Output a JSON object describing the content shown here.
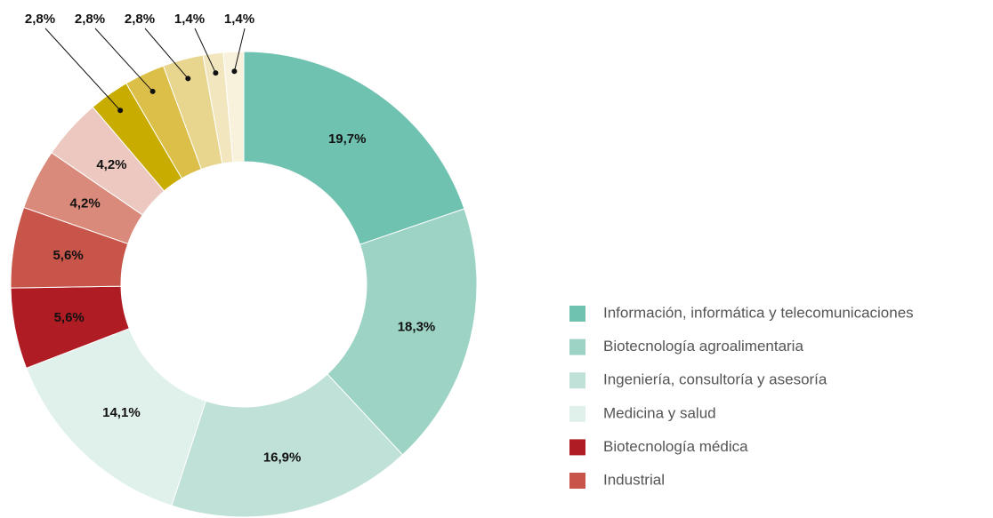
{
  "chart_data": {
    "type": "donut",
    "categories": [
      "Información, informática y telecomunicaciones",
      "Biotecnología agroalimentaria",
      "Ingeniería, consultoría y asesoría",
      "Medicina y salud",
      "Biotecnología médica",
      "Industrial",
      null,
      null,
      null,
      null,
      null,
      null,
      null
    ],
    "values": [
      19.7,
      18.3,
      16.9,
      14.1,
      5.6,
      5.6,
      4.2,
      4.2,
      2.8,
      2.8,
      2.8,
      1.4,
      1.4
    ],
    "value_labels": [
      "19,7%",
      "18,3%",
      "16,9%",
      "14,1%",
      "5,6%",
      "5,6%",
      "4,2%",
      "4,2%",
      "2,8%",
      "2,8%",
      "2,8%",
      "1,4%",
      "1,4%"
    ],
    "colors": [
      "#6fc2b0",
      "#9dd3c4",
      "#c0e1d8",
      "#e0f0eb",
      "#b01c24",
      "#c8554a",
      "#d98a7a",
      "#ecc8c0",
      "#c9ac00",
      "#dcbf48",
      "#e8d58e",
      "#f2e6bf",
      "#f8f1dc"
    ]
  }
}
